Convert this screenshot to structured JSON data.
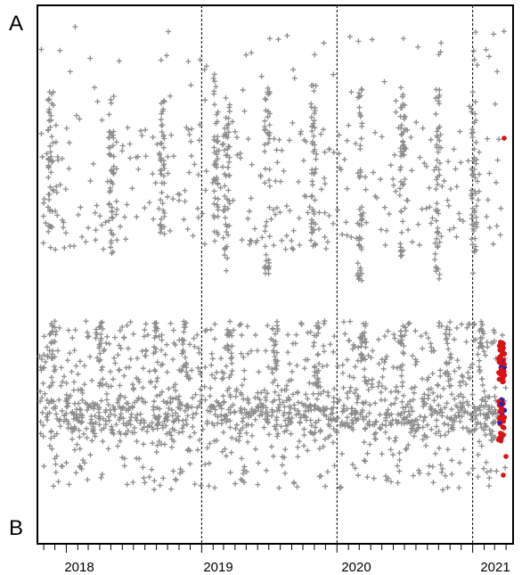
{
  "chart_data": {
    "type": "scatter",
    "title": "",
    "xlabel": "",
    "ylabel": "",
    "panel_labels": {
      "top": "A",
      "bottom": "B"
    },
    "x_tick_labels": [
      "2018",
      "2019",
      "2020",
      "2021"
    ],
    "xlim": [
      "2017-10-15",
      "2021-04-20"
    ],
    "year_boundaries": [
      "2019-01-01",
      "2020-01-01",
      "2021-01-01"
    ],
    "grid": false,
    "legend": "none",
    "series": [
      {
        "marker": "plus",
        "color": "#8c8c8c",
        "description_clusters": [
          {
            "x": "2017-12-01",
            "y": [
              0.22,
              0.42
            ]
          },
          {
            "x": "2018-05-01",
            "y": [
              0.2,
              0.5
            ]
          },
          {
            "x": "2019-05-01",
            "y": [
              0.2,
              0.4
            ]
          },
          {
            "x": "2019-09-01",
            "y": [
              0.22,
              0.45
            ]
          },
          {
            "x": "2020-02-01",
            "y": [
              0.25,
              0.45
            ]
          },
          {
            "x": "2020-05-01",
            "y": [
              0.22,
              0.38
            ]
          },
          {
            "x": "2020-10-01",
            "y": [
              0.22,
              0.4
            ]
          },
          {
            "x": "2021-03-01",
            "y": [
              0.3,
              0.55
            ]
          }
        ]
      },
      {
        "marker": "dot",
        "colors": [
          "#dd1111",
          "#1a22cc"
        ],
        "x": "2021-04-05",
        "y_bands": [
          [
            0.62,
            0.72
          ],
          [
            0.74,
            0.88
          ]
        ]
      }
    ]
  }
}
